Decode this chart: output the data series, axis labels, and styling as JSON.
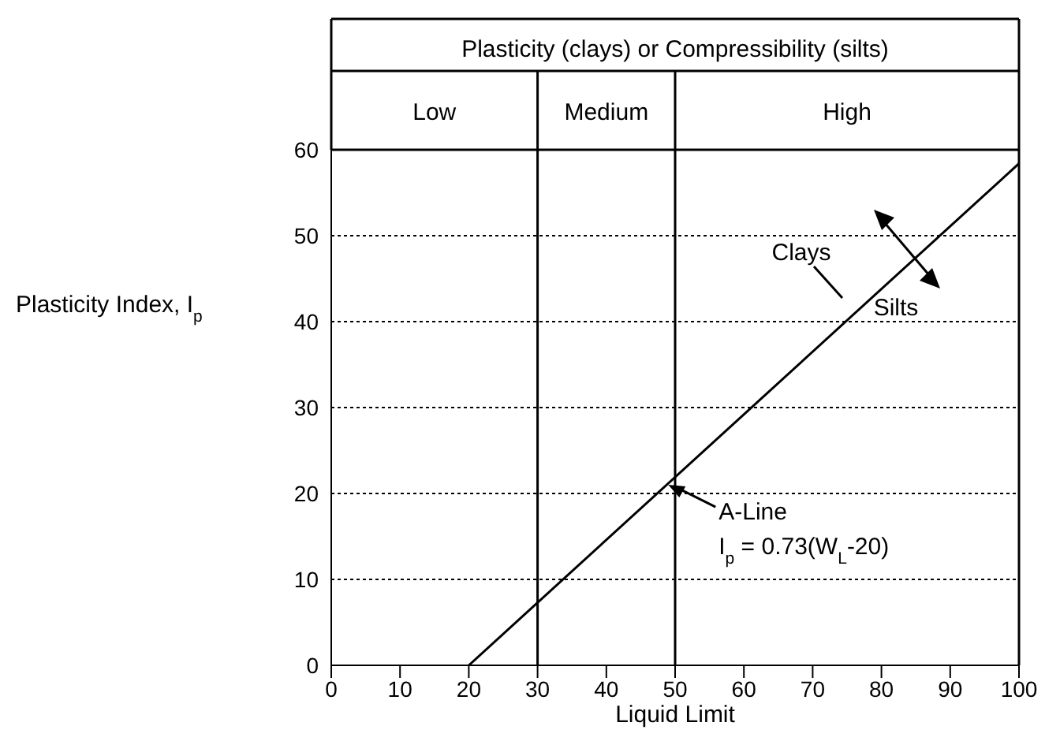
{
  "chart_data": {
    "type": "line",
    "title": "Plasticity (clays) or Compressibility (silts)",
    "xlabel": "Liquid Limit",
    "ylabel": "Plasticity Index, I$_{p}$",
    "x": [
      20,
      100
    ],
    "series": [
      {
        "color": "#000000",
        "values": [
          0,
          58.4
        ]
      }
    ],
    "xlim": [
      0,
      100
    ],
    "ylim": [
      0,
      60
    ],
    "xticks": [
      0,
      10,
      20,
      30,
      40,
      50,
      60,
      70,
      80,
      90,
      100
    ],
    "yticks": [
      0,
      10,
      20,
      30,
      40,
      50,
      60
    ],
    "grid": "y",
    "marker": "none",
    "line_style": "solid",
    "ref_lines": [
      {
        "axis": "x",
        "value": 30,
        "color": "#000000"
      },
      {
        "axis": "x",
        "value": 50,
        "color": "#000000"
      }
    ],
    "annotations": [
      {
        "text": "A-Line",
        "x": 49,
        "y": 21
      },
      "I$_{p}$ = 0.73(W$_{L}$-20)",
      "Clays",
      "Silts",
      "Low",
      "Medium",
      "High"
    ]
  }
}
